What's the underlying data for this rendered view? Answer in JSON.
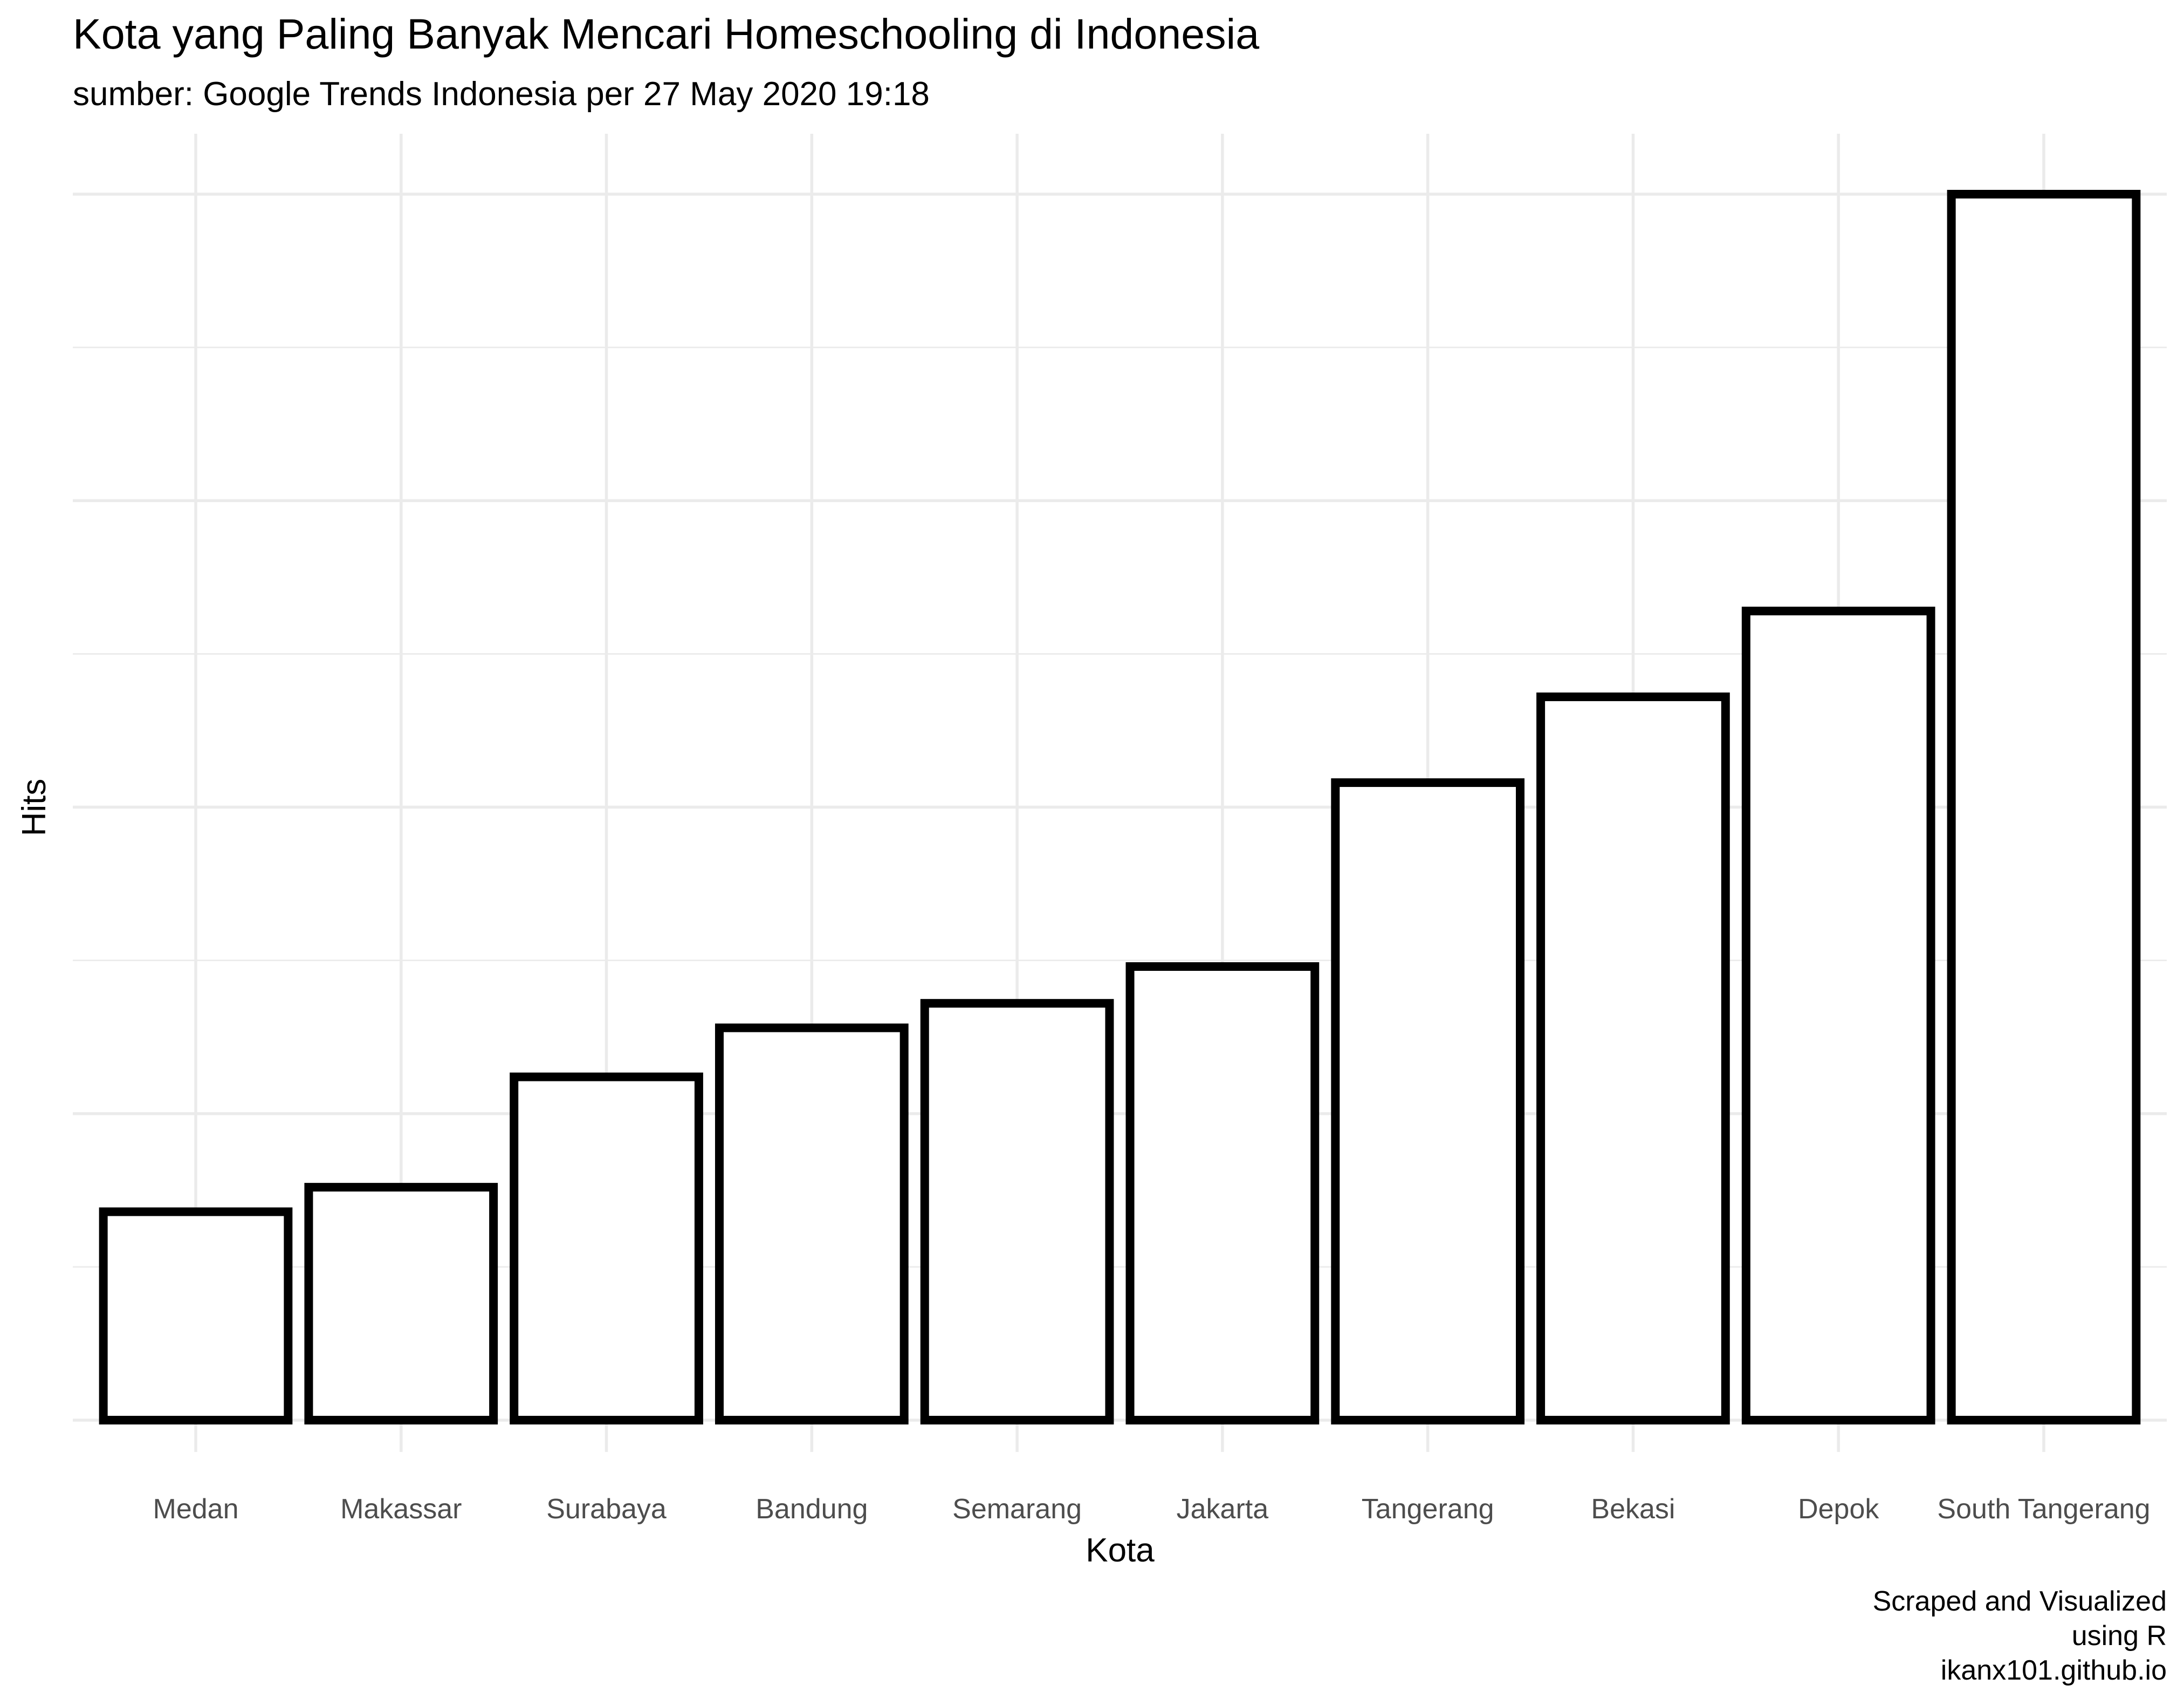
{
  "chart_data": {
    "type": "bar",
    "title": "Kota yang Paling Banyak Mencari Homeschooling di Indonesia",
    "subtitle": "sumber: Google Trends Indonesia per 27 May 2020 19:18",
    "xlabel": "Kota",
    "ylabel": "Hits",
    "categories": [
      "Medan",
      "Makassar",
      "Surabaya",
      "Bandung",
      "Semarang",
      "Jakarta",
      "Tangerang",
      "Bekasi",
      "Depok",
      "South Tangerang"
    ],
    "values": [
      17,
      19,
      28,
      32,
      34,
      37,
      52,
      59,
      66,
      100
    ],
    "ylim": [
      0,
      100
    ],
    "y_tick_labels_shown": false,
    "grid": true,
    "bar_fill": "#ffffff",
    "bar_outline": "#000000",
    "caption": [
      "Scraped and Visualized",
      "using R",
      "ikanx101.github.io"
    ]
  }
}
